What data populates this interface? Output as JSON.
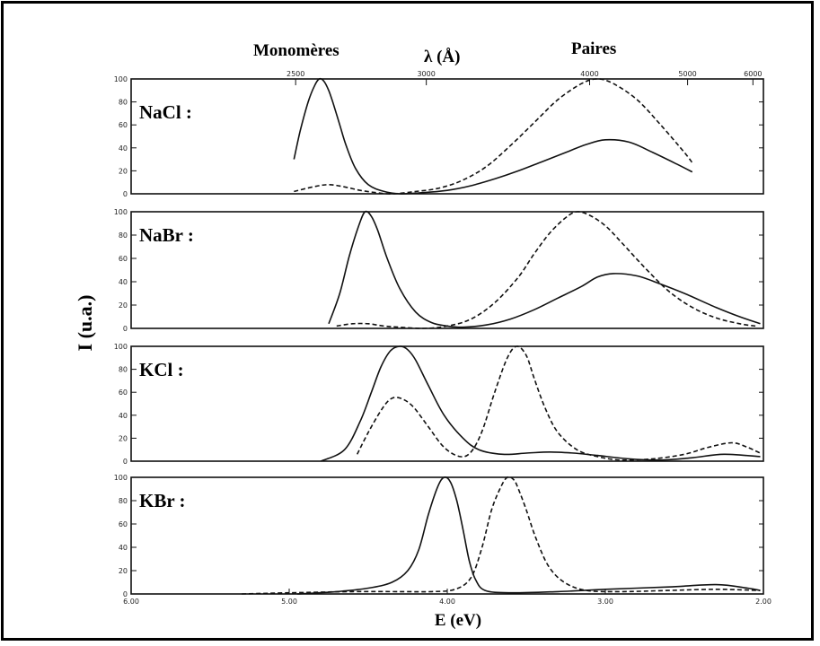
{
  "top_labels": {
    "monomers": "Monomères",
    "wavelength": "λ (Å)",
    "pairs": "Paires"
  },
  "xlabel": "E (eV)",
  "ylabel": "I (u.a.)",
  "wavelength_ticks": [
    "2500",
    "3000",
    "4000",
    "5000",
    "6000"
  ],
  "energy_ticks": [
    "6.00",
    "5.00",
    "4.00",
    "3.00",
    "2.00"
  ],
  "y_ticks": [
    "0",
    "20",
    "40",
    "60",
    "80",
    "100"
  ],
  "colors": {
    "line": "#111111",
    "frame": "#000000"
  },
  "chart_data": [
    {
      "type": "line",
      "panel": "NaCl :",
      "x_unit": "eV",
      "xlim": [
        6.0,
        2.0
      ],
      "ylim": [
        0,
        100
      ],
      "series": [
        {
          "style": "solid",
          "x": [
            4.97,
            4.93,
            4.88,
            4.84,
            4.81,
            4.78,
            4.75,
            4.72,
            4.68,
            4.64,
            4.58,
            4.5,
            4.4,
            4.3,
            4.15,
            4.0,
            3.85,
            3.7,
            3.55,
            3.4,
            3.25,
            3.12,
            3.0,
            2.85,
            2.7,
            2.55,
            2.45
          ],
          "y": [
            30,
            55,
            80,
            94,
            100,
            98,
            90,
            78,
            60,
            42,
            22,
            8,
            2,
            0,
            1,
            3,
            7,
            13,
            20,
            28,
            36,
            43,
            47,
            45,
            36,
            26,
            19
          ]
        },
        {
          "style": "dashed",
          "x": [
            4.97,
            4.85,
            4.75,
            4.65,
            4.55,
            4.45,
            4.35,
            4.2,
            4.05,
            3.9,
            3.75,
            3.6,
            3.45,
            3.3,
            3.15,
            3.05,
            2.95,
            2.8,
            2.65,
            2.5,
            2.45
          ],
          "y": [
            2,
            6,
            8,
            6,
            3,
            1,
            0,
            2,
            5,
            12,
            24,
            42,
            62,
            82,
            96,
            100,
            96,
            82,
            60,
            36,
            27
          ]
        }
      ]
    },
    {
      "type": "line",
      "panel": "NaBr :",
      "x_unit": "eV",
      "xlim": [
        6.0,
        2.0
      ],
      "ylim": [
        0,
        100
      ],
      "series": [
        {
          "style": "solid",
          "x": [
            4.75,
            4.68,
            4.62,
            4.56,
            4.52,
            4.48,
            4.44,
            4.38,
            4.3,
            4.2,
            4.1,
            4.0,
            3.9,
            3.75,
            3.6,
            3.45,
            3.3,
            3.15,
            3.05,
            2.95,
            2.8,
            2.65,
            2.5,
            2.3,
            2.15,
            2.02
          ],
          "y": [
            4,
            30,
            62,
            88,
            100,
            96,
            84,
            60,
            34,
            14,
            5,
            2,
            1,
            3,
            8,
            16,
            26,
            36,
            44,
            47,
            45,
            38,
            30,
            18,
            10,
            4
          ]
        },
        {
          "style": "dashed",
          "x": [
            4.7,
            4.6,
            4.5,
            4.4,
            4.3,
            4.15,
            4.0,
            3.85,
            3.7,
            3.55,
            3.45,
            3.35,
            3.25,
            3.18,
            3.1,
            3.0,
            2.9,
            2.75,
            2.6,
            2.45,
            2.3,
            2.15,
            2.05
          ],
          "y": [
            2,
            4,
            4,
            2,
            1,
            0,
            2,
            8,
            22,
            44,
            64,
            82,
            95,
            100,
            97,
            88,
            74,
            52,
            32,
            18,
            9,
            4,
            2
          ]
        }
      ]
    },
    {
      "type": "line",
      "panel": "KCl :",
      "x_unit": "eV",
      "xlim": [
        6.0,
        2.0
      ],
      "ylim": [
        0,
        100
      ],
      "series": [
        {
          "style": "solid",
          "x": [
            4.8,
            4.65,
            4.55,
            4.48,
            4.42,
            4.36,
            4.3,
            4.25,
            4.2,
            4.12,
            4.02,
            3.9,
            3.8,
            3.65,
            3.5,
            3.35,
            3.2,
            3.05,
            2.85,
            2.65,
            2.45,
            2.25,
            2.02
          ],
          "y": [
            0,
            10,
            35,
            60,
            82,
            96,
            100,
            97,
            88,
            66,
            40,
            20,
            10,
            6,
            7,
            8,
            7,
            5,
            2,
            1,
            3,
            6,
            4
          ]
        },
        {
          "style": "dashed",
          "x": [
            4.57,
            4.5,
            4.42,
            4.36,
            4.3,
            4.22,
            4.12,
            4.02,
            3.92,
            3.85,
            3.78,
            3.7,
            3.62,
            3.56,
            3.5,
            3.45,
            3.38,
            3.3,
            3.18,
            3.05,
            2.9,
            2.7,
            2.5,
            2.35,
            2.2,
            2.1,
            2.02
          ],
          "y": [
            6,
            25,
            44,
            54,
            55,
            48,
            30,
            12,
            4,
            8,
            26,
            60,
            90,
            100,
            92,
            72,
            46,
            25,
            10,
            4,
            1,
            2,
            6,
            12,
            16,
            12,
            7
          ]
        }
      ]
    },
    {
      "type": "line",
      "panel": "KBr :",
      "x_unit": "eV",
      "xlim": [
        6.0,
        2.0
      ],
      "ylim": [
        0,
        100
      ],
      "series": [
        {
          "style": "solid",
          "x": [
            4.95,
            4.7,
            4.5,
            4.35,
            4.25,
            4.18,
            4.12,
            4.06,
            4.02,
            3.98,
            3.94,
            3.9,
            3.86,
            3.82,
            3.76,
            3.6,
            3.3,
            3.0,
            2.6,
            2.3,
            2.1,
            2.02
          ],
          "y": [
            0,
            2,
            5,
            10,
            20,
            38,
            68,
            92,
            100,
            96,
            80,
            55,
            28,
            12,
            3,
            1,
            2,
            4,
            6,
            8,
            5,
            3
          ]
        },
        {
          "style": "dashed",
          "x": [
            5.3,
            5.0,
            4.6,
            4.3,
            4.1,
            3.95,
            3.85,
            3.78,
            3.72,
            3.66,
            3.62,
            3.58,
            3.55,
            3.5,
            3.44,
            3.36,
            3.26,
            3.12,
            2.9,
            2.6,
            2.3,
            2.02
          ],
          "y": [
            0,
            1,
            2,
            2,
            2,
            4,
            14,
            40,
            72,
            92,
            100,
            98,
            90,
            72,
            48,
            24,
            10,
            3,
            2,
            3,
            4,
            3
          ]
        }
      ]
    }
  ]
}
